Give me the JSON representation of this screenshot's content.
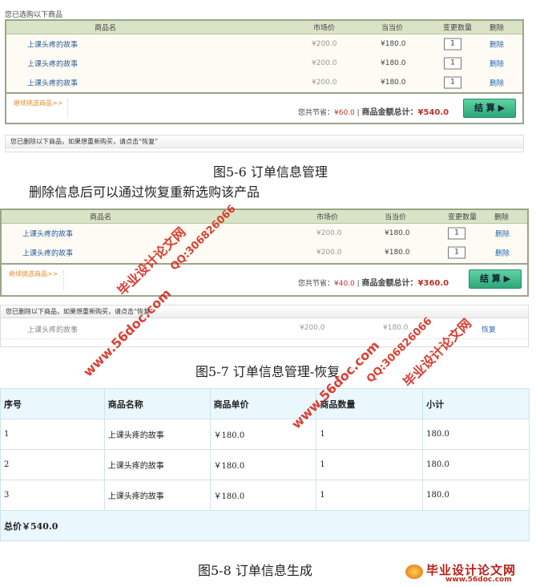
{
  "cart1": {
    "title": "您已选购以下商品",
    "headers": [
      "商品名",
      "市场价",
      "当当价",
      "变更数量",
      "删除"
    ],
    "rows": [
      {
        "name": "上课头疼的故事",
        "market": "¥200.0",
        "price": "¥180.0",
        "qty": "1",
        "action": "删除"
      },
      {
        "name": "上课头疼的故事",
        "market": "¥200.0",
        "price": "¥180.0",
        "qty": "1",
        "action": "删除"
      },
      {
        "name": "上课头疼的故事",
        "market": "¥200.0",
        "price": "¥180.0",
        "qty": "1",
        "action": "删除"
      }
    ],
    "continue": "继续挑选商品>>",
    "save_label": "您共节省：",
    "save": "¥60.0",
    "total_label": "商品金额总计：",
    "total": "¥540.0",
    "checkout": "结 算 ▶"
  },
  "deleted1": {
    "title": "您已删除以下商品，如果想重新购买，请点击“恢复”"
  },
  "caption1": "图5-6  订单信息管理",
  "paragraph": "删除信息后可以通过恢复重新选购该产品",
  "cart2": {
    "headers": [
      "商品名",
      "市场价",
      "当当价",
      "变更数量",
      "删除"
    ],
    "rows": [
      {
        "name": "上课头疼的故事",
        "market": "¥200.0",
        "price": "¥180.0",
        "qty": "1",
        "action": "删除"
      },
      {
        "name": "上课头疼的故事",
        "market": "¥200.0",
        "price": "¥180.0",
        "qty": "1",
        "action": "删除"
      }
    ],
    "continue": "继续挑选商品>>",
    "save_label": "您共节省：",
    "save": "¥40.0",
    "total_label": "商品金额总计：",
    "total": "¥360.0",
    "checkout": "结 算 ▶"
  },
  "deleted2": {
    "title": "您已删除以下商品，如果想重新购买，请点击“恢复”",
    "rows": [
      {
        "name": "上课头疼的故事",
        "market": "¥200.0",
        "price": "¥180.0",
        "action": "恢复"
      }
    ]
  },
  "caption2": "图5-7  订单信息管理-恢复",
  "order": {
    "headers": [
      "序号",
      "商品名称",
      "商品单价",
      "商品数量",
      "小计"
    ],
    "rows": [
      [
        "1",
        "上课头疼的故事",
        "￥180.0",
        "1",
        "180.0"
      ],
      [
        "2",
        "上课头疼的故事",
        "￥180.0",
        "1",
        "180.0"
      ],
      [
        "3",
        "上课头疼的故事",
        "￥180.0",
        "1",
        "180.0"
      ]
    ],
    "total": "总价￥540.0"
  },
  "caption3": "图5-8  订单信息生成",
  "watermark": {
    "site": "www.56doc.com",
    "name": "毕业设计论文网",
    "qq": "QQ:306826066"
  },
  "logo": {
    "name": "毕业设计论文网",
    "site": "www.56doc.com"
  }
}
